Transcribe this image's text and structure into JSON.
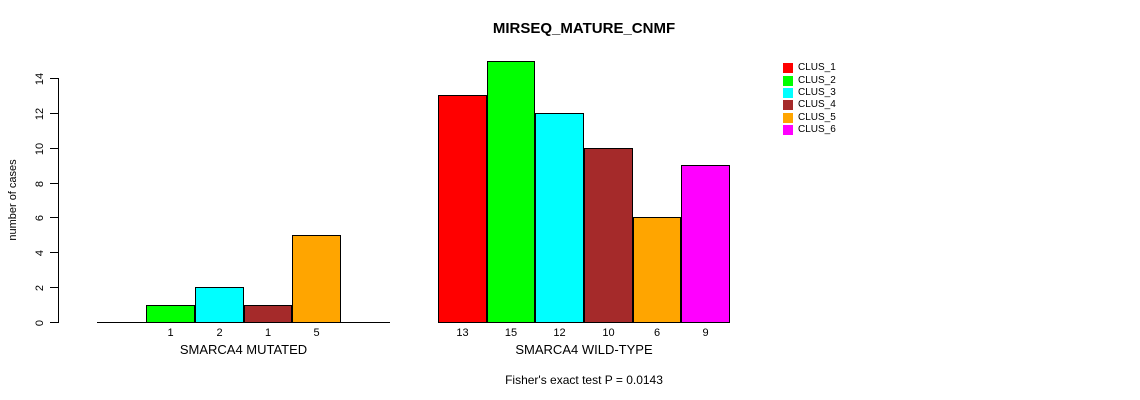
{
  "chart_data": {
    "type": "bar",
    "title": "MIRSEQ_MATURE_CNMF",
    "ylabel": "number of cases",
    "ylim": [
      0,
      15
    ],
    "yticks": [
      0,
      2,
      4,
      6,
      8,
      10,
      12,
      14
    ],
    "grid": false,
    "legend_position": "right",
    "legend": [
      {
        "label": "CLUS_1",
        "color": "#FF0000"
      },
      {
        "label": "CLUS_2",
        "color": "#00FF00"
      },
      {
        "label": "CLUS_3",
        "color": "#00FFFF"
      },
      {
        "label": "CLUS_4",
        "color": "#A52A2A"
      },
      {
        "label": "CLUS_5",
        "color": "#FFA500"
      },
      {
        "label": "CLUS_6",
        "color": "#FF00FF"
      }
    ],
    "groups": [
      {
        "label": "SMARCA4 MUTATED",
        "values": [
          0,
          1,
          2,
          1,
          5,
          0
        ]
      },
      {
        "label": "SMARCA4 WILD-TYPE",
        "values": [
          13,
          15,
          12,
          10,
          6,
          9
        ]
      }
    ],
    "bar_count_labels": "values shown under each nonzero bar",
    "annotation": "Fisher's exact test P = 0.0143"
  }
}
